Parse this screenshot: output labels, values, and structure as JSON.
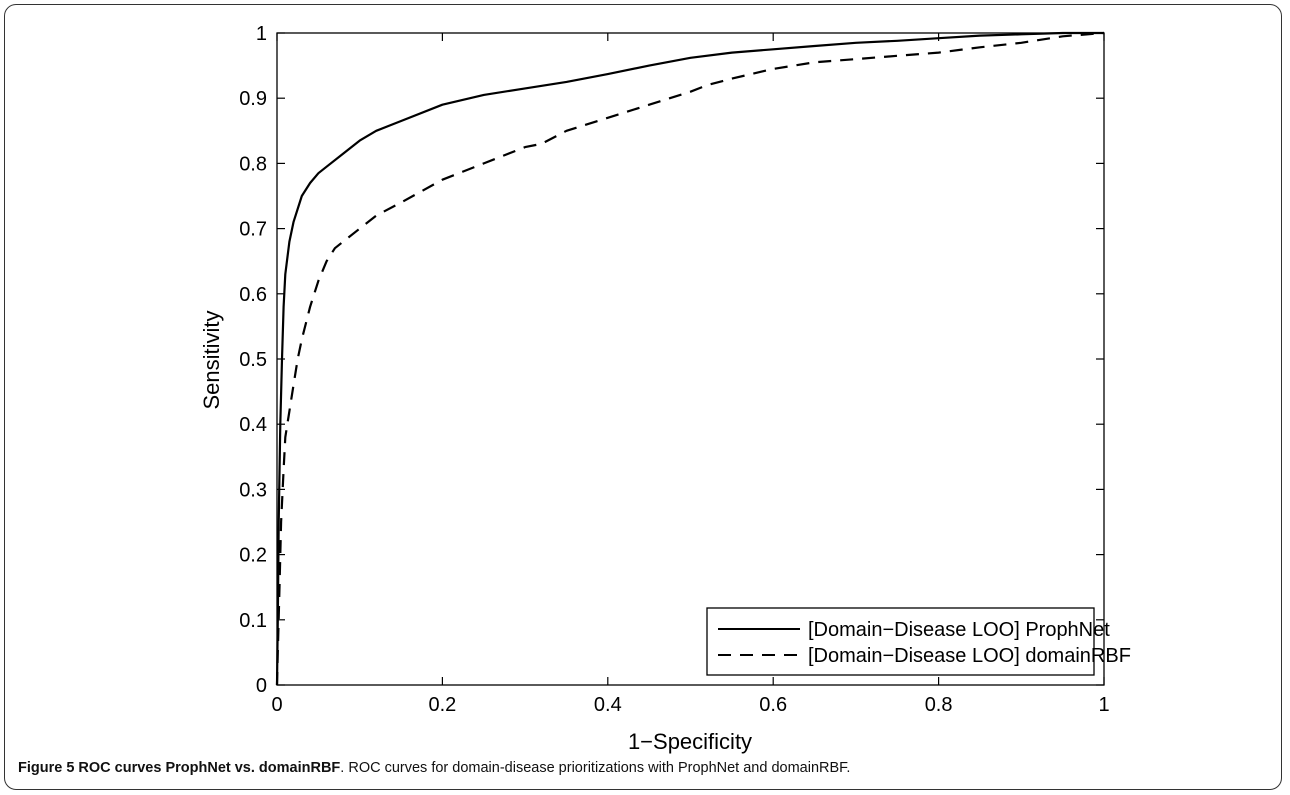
{
  "chart_data": {
    "type": "line",
    "title": "",
    "xlabel": "1−Specificity",
    "ylabel": "Sensitivity",
    "xlim": [
      0,
      1
    ],
    "ylim": [
      0,
      1
    ],
    "xticks": [
      "0",
      "0.2",
      "0.4",
      "0.6",
      "0.8",
      "1"
    ],
    "yticks": [
      "0",
      "0.1",
      "0.2",
      "0.3",
      "0.4",
      "0.5",
      "0.6",
      "0.7",
      "0.8",
      "0.9",
      "1"
    ],
    "grid": false,
    "legend_position": "bottom-right",
    "series": [
      {
        "name": "[Domain−Disease LOO] ProphNet",
        "style": "solid",
        "color": "#000000",
        "x": [
          0,
          0.001,
          0.002,
          0.004,
          0.006,
          0.008,
          0.01,
          0.015,
          0.02,
          0.03,
          0.04,
          0.05,
          0.06,
          0.08,
          0.1,
          0.12,
          0.15,
          0.2,
          0.25,
          0.3,
          0.35,
          0.4,
          0.45,
          0.5,
          0.55,
          0.6,
          0.65,
          0.7,
          0.75,
          0.8,
          0.85,
          0.9,
          0.95,
          1.0
        ],
        "y": [
          0,
          0.1,
          0.25,
          0.4,
          0.5,
          0.58,
          0.63,
          0.68,
          0.71,
          0.75,
          0.77,
          0.785,
          0.795,
          0.815,
          0.835,
          0.85,
          0.865,
          0.89,
          0.905,
          0.915,
          0.925,
          0.937,
          0.95,
          0.962,
          0.97,
          0.975,
          0.98,
          0.985,
          0.988,
          0.992,
          0.996,
          0.998,
          1.0,
          1.0
        ]
      },
      {
        "name": "[Domain−Disease LOO] domainRBF",
        "style": "dashed",
        "color": "#000000",
        "x": [
          0,
          0.001,
          0.003,
          0.005,
          0.008,
          0.01,
          0.015,
          0.02,
          0.025,
          0.03,
          0.04,
          0.05,
          0.06,
          0.07,
          0.08,
          0.1,
          0.12,
          0.15,
          0.2,
          0.25,
          0.3,
          0.32,
          0.35,
          0.4,
          0.45,
          0.5,
          0.52,
          0.55,
          0.6,
          0.65,
          0.7,
          0.75,
          0.8,
          0.85,
          0.9,
          0.95,
          1.0
        ],
        "y": [
          0,
          0.05,
          0.15,
          0.25,
          0.33,
          0.38,
          0.42,
          0.46,
          0.5,
          0.53,
          0.58,
          0.62,
          0.65,
          0.67,
          0.68,
          0.7,
          0.72,
          0.74,
          0.775,
          0.8,
          0.825,
          0.83,
          0.85,
          0.87,
          0.89,
          0.91,
          0.92,
          0.93,
          0.945,
          0.955,
          0.96,
          0.965,
          0.97,
          0.978,
          0.985,
          0.995,
          1.0
        ]
      }
    ]
  },
  "caption": {
    "label": "Figure 5 ROC curves ProphNet vs. domainRBF",
    "text": ". ROC curves for domain-disease prioritizations with ProphNet and domainRBF."
  }
}
